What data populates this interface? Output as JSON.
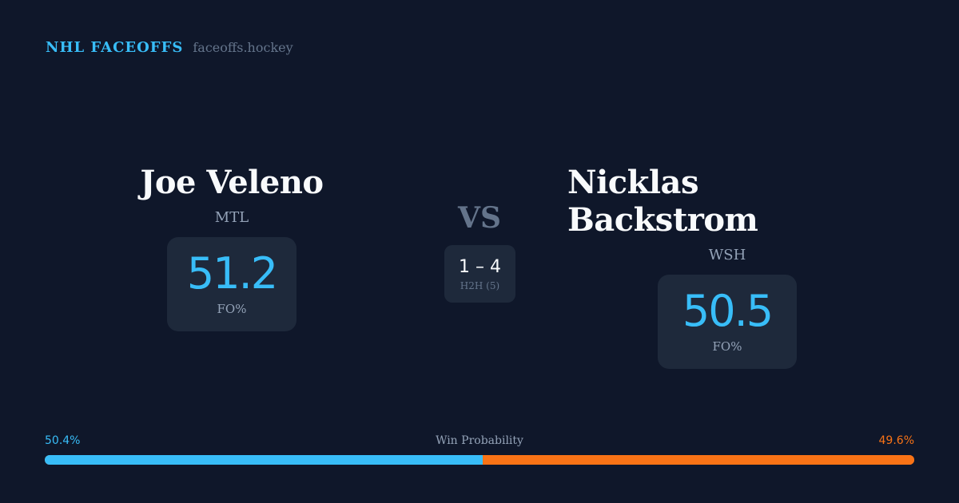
{
  "brand": {
    "title": "NHL FACEOFFS",
    "url": "faceoffs.hockey"
  },
  "left_player": {
    "name": "Joe Veleno",
    "team": "MTL",
    "fo_pct": "51.2",
    "fo_label": "FO%"
  },
  "right_player": {
    "name": "Nicklas Backstrom",
    "team": "WSH",
    "fo_pct": "50.5",
    "fo_label": "FO%"
  },
  "vs": "VS",
  "h2h": {
    "score": "1 – 4",
    "label": "H2H (5)"
  },
  "win_probability": {
    "label": "Win Probability",
    "left": "50.4%",
    "right": "49.6%",
    "left_value": 50.4,
    "right_value": 49.6,
    "left_color": "#38bdf8",
    "right_color": "#f97316"
  }
}
